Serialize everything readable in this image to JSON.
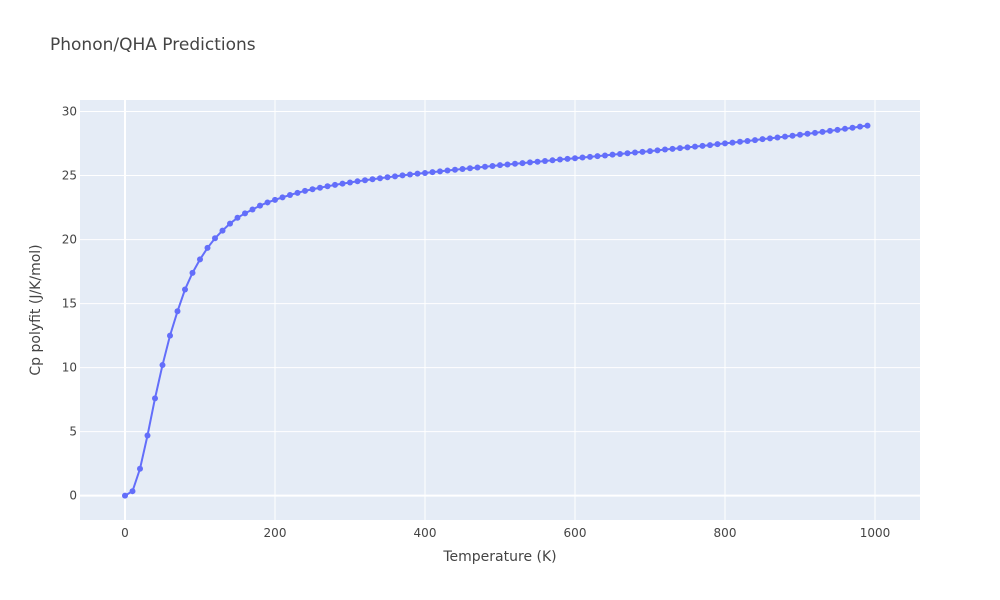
{
  "chart_data": {
    "type": "line",
    "title": "Phonon/QHA Predictions",
    "xlabel": "Temperature (K)",
    "ylabel": "Cp polyfit (J/K/mol)",
    "xlim": [
      -60,
      1060
    ],
    "ylim": [
      -1.9,
      30.9
    ],
    "xticks": [
      0,
      200,
      400,
      600,
      800,
      1000
    ],
    "yticks": [
      0,
      5,
      10,
      15,
      20,
      25,
      30
    ],
    "grid": true,
    "colors": {
      "line": "#636efa",
      "plot_bg": "#e5ecf6",
      "grid": "#ffffff"
    },
    "series": [
      {
        "x": [
          0,
          10,
          20,
          30,
          40,
          50,
          60,
          70,
          80,
          90,
          100,
          110,
          120,
          130,
          140,
          150,
          160,
          170,
          180,
          190,
          200,
          210,
          220,
          230,
          240,
          250,
          260,
          270,
          280,
          290,
          300,
          310,
          320,
          330,
          340,
          350,
          360,
          370,
          380,
          390,
          400,
          410,
          420,
          430,
          440,
          450,
          460,
          470,
          480,
          490,
          500,
          510,
          520,
          530,
          540,
          550,
          560,
          570,
          580,
          590,
          600,
          610,
          620,
          630,
          640,
          650,
          660,
          670,
          680,
          690,
          700,
          710,
          720,
          730,
          740,
          750,
          760,
          770,
          780,
          790,
          800,
          810,
          820,
          830,
          840,
          850,
          860,
          870,
          880,
          890,
          900,
          910,
          920,
          930,
          940,
          950,
          960,
          970,
          980,
          990
        ],
        "values": [
          0.0,
          0.35,
          2.1,
          4.7,
          7.6,
          10.2,
          12.5,
          14.4,
          16.1,
          17.4,
          18.45,
          19.35,
          20.1,
          20.7,
          21.25,
          21.7,
          22.05,
          22.35,
          22.65,
          22.9,
          23.1,
          23.3,
          23.48,
          23.65,
          23.8,
          23.93,
          24.05,
          24.16,
          24.27,
          24.37,
          24.46,
          24.55,
          24.63,
          24.71,
          24.79,
          24.87,
          24.94,
          25.01,
          25.08,
          25.15,
          25.2,
          25.27,
          25.33,
          25.39,
          25.45,
          25.51,
          25.57,
          25.63,
          25.69,
          25.75,
          25.81,
          25.86,
          25.92,
          25.97,
          26.03,
          26.08,
          26.14,
          26.19,
          26.25,
          26.3,
          26.35,
          26.41,
          26.46,
          26.52,
          26.57,
          26.63,
          26.68,
          26.74,
          26.8,
          26.85,
          26.91,
          26.97,
          27.03,
          27.08,
          27.14,
          27.2,
          27.26,
          27.32,
          27.38,
          27.45,
          27.51,
          27.57,
          27.64,
          27.7,
          27.77,
          27.84,
          27.9,
          27.97,
          28.04,
          28.11,
          28.19,
          28.26,
          28.33,
          28.41,
          28.49,
          28.57,
          28.65,
          28.73,
          28.82,
          28.9
        ]
      }
    ]
  }
}
